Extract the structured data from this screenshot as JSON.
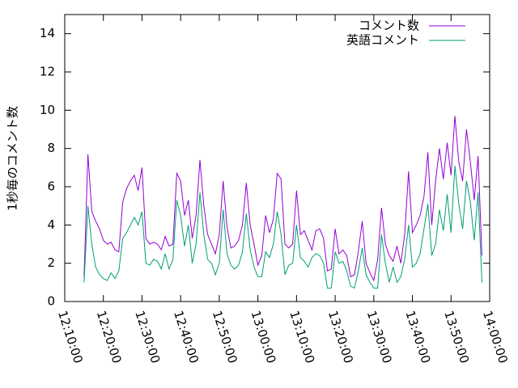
{
  "chart_data": {
    "type": "line",
    "ylabel": "1秒毎のコメント数",
    "x": [
      "12:15:00",
      "12:16:00",
      "12:17:00",
      "12:18:00",
      "12:19:00",
      "12:20:00",
      "12:21:00",
      "12:22:00",
      "12:23:00",
      "12:24:00",
      "12:25:00",
      "12:26:00",
      "12:27:00",
      "12:28:00",
      "12:29:00",
      "12:30:00",
      "12:31:00",
      "12:32:00",
      "12:33:00",
      "12:34:00",
      "12:35:00",
      "12:36:00",
      "12:37:00",
      "12:38:00",
      "12:39:00",
      "12:40:00",
      "12:41:00",
      "12:42:00",
      "12:43:00",
      "12:44:00",
      "12:45:00",
      "12:46:00",
      "12:47:00",
      "12:48:00",
      "12:49:00",
      "12:50:00",
      "12:51:00",
      "12:52:00",
      "12:53:00",
      "12:54:00",
      "12:55:00",
      "12:56:00",
      "12:57:00",
      "12:58:00",
      "12:59:00",
      "13:00:00",
      "13:01:00",
      "13:02:00",
      "13:03:00",
      "13:04:00",
      "13:05:00",
      "13:06:00",
      "13:07:00",
      "13:08:00",
      "13:09:00",
      "13:10:00",
      "13:11:00",
      "13:12:00",
      "13:13:00",
      "13:14:00",
      "13:15:00",
      "13:16:00",
      "13:17:00",
      "13:18:00",
      "13:19:00",
      "13:20:00",
      "13:21:00",
      "13:22:00",
      "13:23:00",
      "13:24:00",
      "13:25:00",
      "13:26:00",
      "13:27:00",
      "13:28:00",
      "13:29:00",
      "13:30:00",
      "13:31:00",
      "13:32:00",
      "13:33:00",
      "13:34:00",
      "13:35:00",
      "13:36:00",
      "13:37:00",
      "13:38:00",
      "13:39:00",
      "13:40:00",
      "13:41:00",
      "13:42:00",
      "13:43:00",
      "13:44:00",
      "13:45:00",
      "13:46:00",
      "13:47:00",
      "13:48:00",
      "13:49:00",
      "13:50:00",
      "13:51:00",
      "13:52:00",
      "13:53:00",
      "13:54:00",
      "13:55:00",
      "13:56:00",
      "13:57:00",
      "13:58:00"
    ],
    "series": [
      {
        "name": "コメント数",
        "color": "#9400d3",
        "values": [
          1.3,
          7.7,
          4.7,
          4.2,
          3.8,
          3.2,
          3.0,
          3.1,
          2.7,
          2.6,
          5.2,
          5.9,
          6.3,
          6.6,
          5.8,
          7.0,
          3.3,
          3.0,
          3.1,
          3.0,
          2.7,
          3.4,
          2.9,
          3.0,
          6.7,
          6.3,
          4.5,
          5.3,
          3.3,
          4.5,
          7.4,
          5.0,
          3.5,
          3.0,
          2.5,
          3.5,
          6.3,
          3.9,
          2.8,
          2.9,
          3.2,
          4.0,
          6.2,
          4.0,
          3.0,
          1.9,
          2.4,
          4.5,
          3.6,
          4.3,
          6.7,
          6.4,
          3.0,
          2.8,
          3.0,
          5.8,
          3.5,
          3.7,
          3.2,
          2.7,
          3.7,
          3.8,
          3.3,
          1.6,
          1.7,
          3.8,
          2.5,
          2.7,
          2.4,
          1.3,
          1.4,
          2.6,
          4.2,
          2.0,
          1.5,
          1.1,
          2.2,
          4.9,
          3.0,
          2.4,
          2.1,
          2.9,
          2.0,
          3.5,
          6.8,
          3.6,
          4.0,
          4.5,
          5.5,
          7.8,
          4.0,
          6.3,
          8.0,
          6.4,
          8.3,
          6.6,
          9.7,
          7.3,
          6.3,
          9.0,
          7.3,
          5.3,
          7.6,
          2.4
        ]
      },
      {
        "name": "英語コメント",
        "color": "#009e73",
        "values": [
          1.0,
          5.0,
          3.0,
          1.8,
          1.4,
          1.2,
          1.1,
          1.5,
          1.2,
          1.6,
          3.3,
          3.6,
          4.0,
          4.4,
          4.0,
          4.7,
          2.0,
          1.9,
          2.2,
          2.1,
          1.7,
          2.5,
          1.7,
          2.2,
          5.3,
          4.5,
          2.9,
          4.0,
          2.0,
          3.0,
          5.7,
          3.5,
          2.2,
          2.0,
          1.4,
          2.0,
          4.8,
          2.5,
          1.9,
          1.7,
          1.9,
          2.6,
          4.6,
          2.7,
          1.8,
          1.3,
          1.3,
          2.6,
          2.3,
          3.0,
          4.7,
          3.5,
          1.4,
          1.9,
          2.0,
          4.0,
          2.3,
          2.1,
          1.8,
          2.3,
          2.5,
          2.4,
          2.0,
          0.7,
          0.7,
          2.6,
          2.0,
          2.1,
          1.6,
          0.8,
          0.7,
          1.6,
          2.8,
          1.4,
          1.0,
          0.7,
          0.7,
          3.5,
          2.0,
          1.0,
          1.8,
          1.0,
          1.3,
          2.2,
          4.0,
          1.8,
          2.0,
          2.5,
          3.8,
          5.1,
          2.4,
          3.0,
          4.8,
          3.7,
          5.6,
          3.6,
          7.1,
          5.1,
          3.8,
          6.3,
          5.2,
          3.2,
          5.7,
          1.0
        ]
      }
    ],
    "xlim": [
      "12:10:00",
      "14:00:00"
    ],
    "xticks": [
      "12:10:00",
      "12:20:00",
      "12:30:00",
      "12:40:00",
      "12:50:00",
      "13:00:00",
      "13:10:00",
      "13:20:00",
      "13:30:00",
      "13:40:00",
      "13:50:00",
      "14:00:00"
    ],
    "ylim": [
      0,
      15
    ],
    "yticks": [
      0,
      2,
      4,
      6,
      8,
      10,
      12,
      14
    ],
    "legend": "top-right"
  }
}
